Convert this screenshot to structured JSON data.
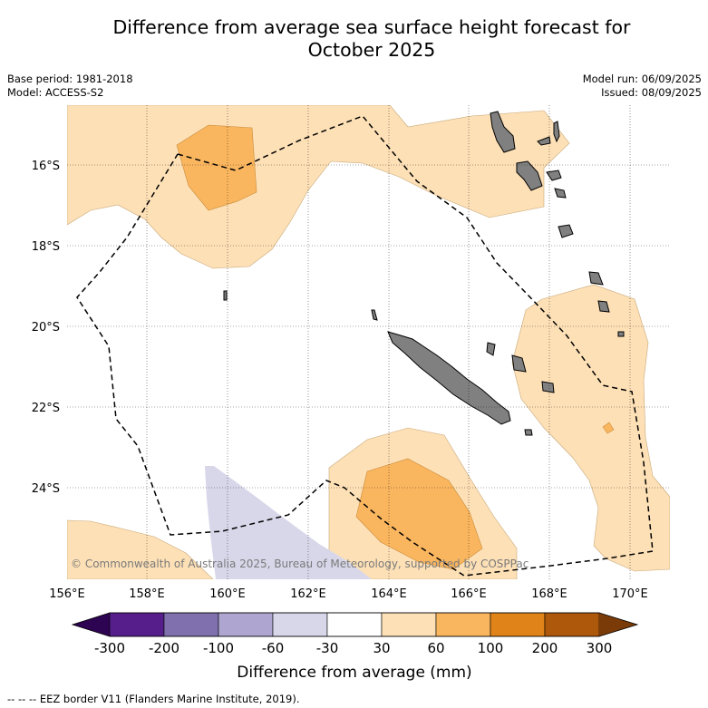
{
  "title_line1": "Difference from average sea surface height forecast for",
  "title_line2": "October 2025",
  "base_period": "Base period: 1981-2018",
  "model": "Model: ACCESS-S2",
  "model_run": "Model run: 06/09/2025",
  "issued": "Issued: 08/09/2025",
  "copyright": "© Commonwealth of Australia 2025, Bureau of Meteorology, supported by COSPPac",
  "lon_ticks": [
    "156°E",
    "158°E",
    "160°E",
    "162°E",
    "164°E",
    "166°E",
    "168°E",
    "170°E"
  ],
  "lat_ticks": [
    "16°S",
    "18°S",
    "20°S",
    "22°S",
    "24°S"
  ],
  "colorbar": {
    "label": "Difference from average (mm)",
    "ticks": [
      "-300",
      "-200",
      "-100",
      "-60",
      "-30",
      "30",
      "60",
      "100",
      "200",
      "300"
    ],
    "colors": [
      "#561e8a",
      "#8070ae",
      "#aea6d0",
      "#d8d7ea",
      "#ffffff",
      "#fde0b6",
      "#fab65f",
      "#e08318",
      "#ae580c"
    ],
    "under_color": "#2d0451",
    "over_color": "#7a3b08"
  },
  "colors": {
    "land": "#808080",
    "pos_30_60": "#fde0b6",
    "pos_60_100": "#fab65f",
    "neg_30_60": "#d8d7ea"
  },
  "footer": "--  --  -- EEZ border V11 (Flanders Marine Institute, 2019)."
}
